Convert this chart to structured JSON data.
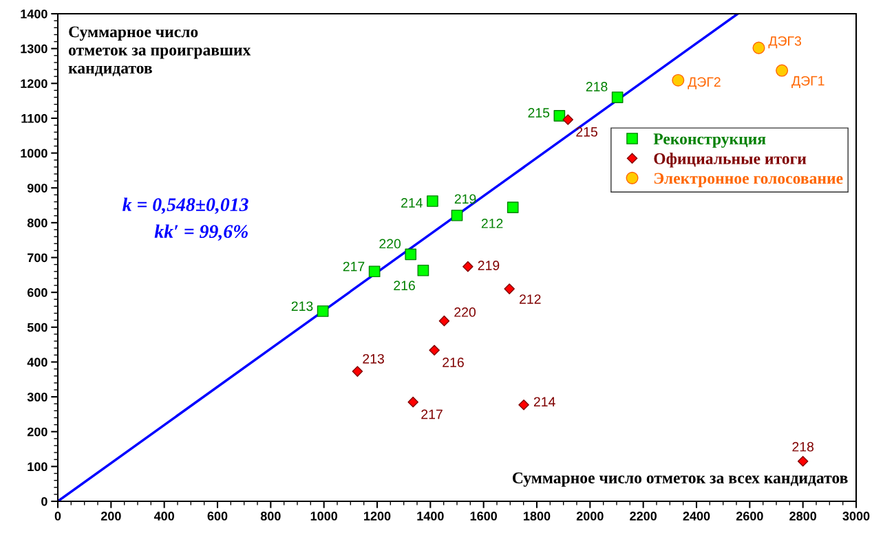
{
  "chart_data": {
    "type": "scatter",
    "xlabel": "Суммарное число отметок за всех кандидатов",
    "ylabel": "Суммарное число отметок за проигравших кандидатов",
    "annotations": [
      "k = 0,548±0,013",
      "kk′ = 99,6%",
      {
        "text": "213",
        "x": 996,
        "y": 546
      },
      {
        "text": "217",
        "x": 1190,
        "y": 660
      },
      {
        "text": "220",
        "x": 1326,
        "y": 709
      },
      {
        "text": "216",
        "x": 1373,
        "y": 663
      },
      {
        "text": "214",
        "x": 1408,
        "y": 862
      },
      {
        "text": "219",
        "x": 1500,
        "y": 821
      },
      {
        "text": "212",
        "x": 1710,
        "y": 844
      },
      {
        "text": "215",
        "x": 1885,
        "y": 1107
      },
      {
        "text": "218",
        "x": 2103,
        "y": 1160
      },
      {
        "text": "213",
        "x": 1126,
        "y": 373
      },
      {
        "text": "217",
        "x": 1335,
        "y": 285
      },
      {
        "text": "216",
        "x": 1415,
        "y": 434
      },
      {
        "text": "220",
        "x": 1452,
        "y": 518
      },
      {
        "text": "219",
        "x": 1541,
        "y": 674
      },
      {
        "text": "212",
        "x": 1697,
        "y": 610
      },
      {
        "text": "214",
        "x": 1751,
        "y": 277
      },
      {
        "text": "215",
        "x": 1917,
        "y": 1096
      },
      {
        "text": "218",
        "x": 2800,
        "y": 115
      },
      {
        "text": "ДЭГ2",
        "x": 2331,
        "y": 1209
      },
      {
        "text": "ДЭГ3",
        "x": 2634,
        "y": 1302
      },
      {
        "text": "ДЭГ1",
        "x": 2721,
        "y": 1237
      }
    ],
    "series": [
      {
        "name": "Реконструкция",
        "color": "#00ff00",
        "marker": "square",
        "x": [
          996,
          1190,
          1326,
          1373,
          1408,
          1500,
          1710,
          1885,
          2103
        ],
        "values": [
          546,
          660,
          709,
          663,
          862,
          821,
          844,
          1107,
          1160
        ]
      },
      {
        "name": "Официальные итоги",
        "color": "#ff0000",
        "marker": "diamond",
        "x": [
          1126,
          1335,
          1415,
          1452,
          1541,
          1697,
          1751,
          1917,
          2800
        ],
        "values": [
          373,
          285,
          434,
          518,
          674,
          610,
          277,
          1096,
          115
        ]
      },
      {
        "name": "Электронное голосование",
        "color": "#ffcc00",
        "marker": "circle",
        "x": [
          2331,
          2634,
          2721
        ],
        "values": [
          1209,
          1302,
          1237
        ]
      },
      {
        "type": "line",
        "color": "#0000ff",
        "marker": "none",
        "line_style": "solid",
        "x": [
          0,
          2555
        ],
        "values": [
          0,
          1400
        ]
      }
    ],
    "xlim": [
      0,
      3000
    ],
    "ylim": [
      0,
      1400
    ],
    "xticks": [
      0,
      200,
      400,
      600,
      800,
      1000,
      1200,
      1400,
      1600,
      1800,
      2000,
      2200,
      2400,
      2600,
      2800,
      3000
    ],
    "yticks": [
      0,
      100,
      200,
      300,
      400,
      500,
      600,
      700,
      800,
      900,
      1000,
      1100,
      1200,
      1300,
      1400
    ],
    "grid": false,
    "legend": "right"
  }
}
